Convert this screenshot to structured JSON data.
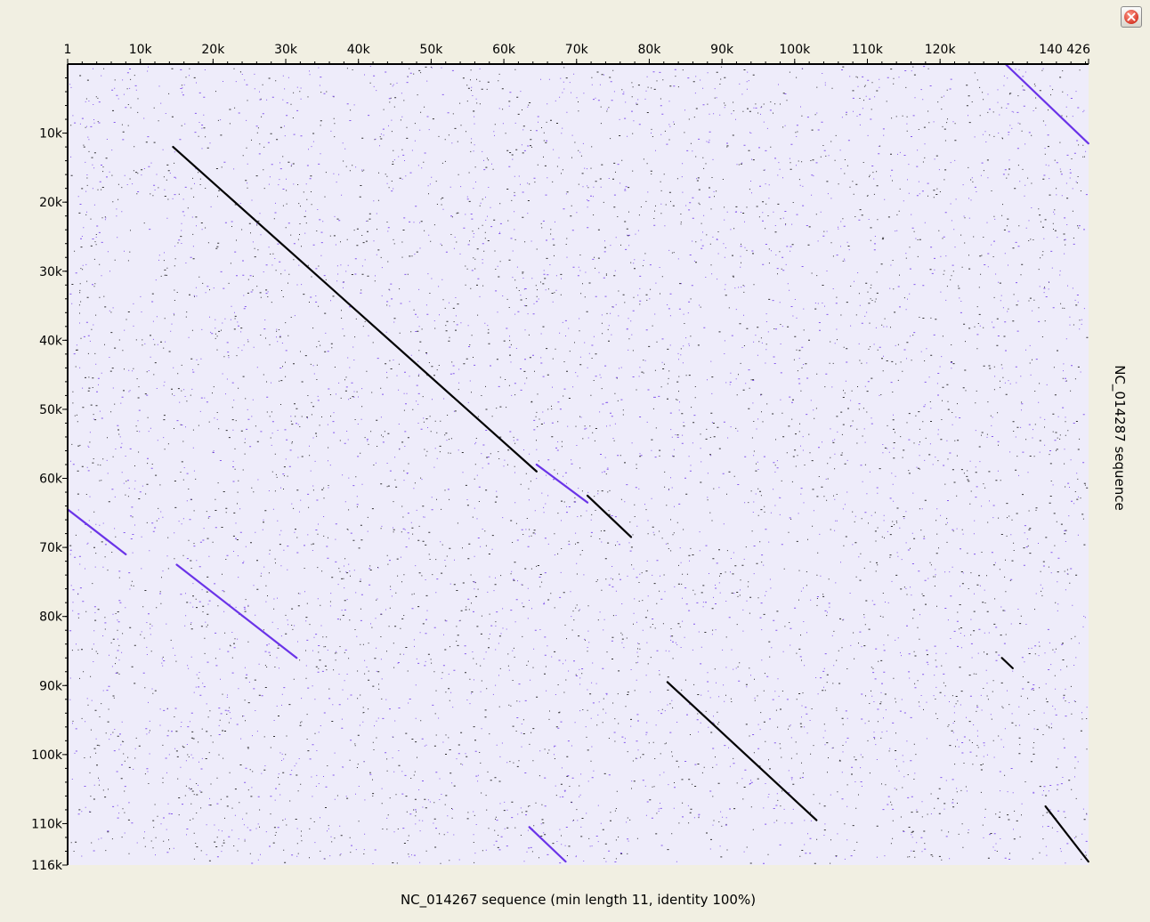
{
  "window": {
    "close_icon": "close-icon"
  },
  "colors": {
    "background": "#f1efe2",
    "plot_background": "#eeecfa",
    "forward_match": "#000000",
    "reverse_match": "#6a33e8"
  },
  "chart_data": {
    "type": "scatter",
    "xlabel": "NC_014267 sequence (min length 11, identity 100%)",
    "ylabel": "NC_014287 sequence",
    "x_axis_position": "top",
    "y_axis_position": "left",
    "xlim": [
      1,
      140426
    ],
    "ylim": [
      1,
      116000
    ],
    "y_inverted": true,
    "grid": false,
    "x_ticks": [
      {
        "value": 1,
        "label": "1"
      },
      {
        "value": 10000,
        "label": "10k"
      },
      {
        "value": 20000,
        "label": "20k"
      },
      {
        "value": 30000,
        "label": "30k"
      },
      {
        "value": 40000,
        "label": "40k"
      },
      {
        "value": 50000,
        "label": "50k"
      },
      {
        "value": 60000,
        "label": "60k"
      },
      {
        "value": 70000,
        "label": "70k"
      },
      {
        "value": 80000,
        "label": "80k"
      },
      {
        "value": 90000,
        "label": "90k"
      },
      {
        "value": 100000,
        "label": "100k"
      },
      {
        "value": 110000,
        "label": "110k"
      },
      {
        "value": 120000,
        "label": "120k"
      },
      {
        "value": 140426,
        "label": "140 426"
      }
    ],
    "y_ticks": [
      {
        "value": 10000,
        "label": "10k"
      },
      {
        "value": 20000,
        "label": "20k"
      },
      {
        "value": 30000,
        "label": "30k"
      },
      {
        "value": 40000,
        "label": "40k"
      },
      {
        "value": 50000,
        "label": "50k"
      },
      {
        "value": 60000,
        "label": "60k"
      },
      {
        "value": 70000,
        "label": "70k"
      },
      {
        "value": 80000,
        "label": "80k"
      },
      {
        "value": 90000,
        "label": "90k"
      },
      {
        "value": 100000,
        "label": "100k"
      },
      {
        "value": 110000,
        "label": "110k"
      },
      {
        "value": 116000,
        "label": "116k"
      }
    ],
    "series": [
      {
        "kind": "forward",
        "color": "#000000",
        "segments": [
          {
            "x": [
              14500,
              64500
            ],
            "y": [
              12000,
              59000
            ]
          },
          {
            "x": [
              71500,
              77500
            ],
            "y": [
              62500,
              68500
            ]
          },
          {
            "x": [
              82500,
              103000
            ],
            "y": [
              89500,
              109500
            ]
          },
          {
            "x": [
              134500,
              140400
            ],
            "y": [
              107500,
              115500
            ]
          },
          {
            "x": [
              128500,
              130000
            ],
            "y": [
              86000,
              87500
            ]
          }
        ]
      },
      {
        "kind": "reverse",
        "color": "#6a33e8",
        "segments": [
          {
            "x": [
              129000,
              140400
            ],
            "y": [
              1,
              11500
            ]
          },
          {
            "x": [
              1,
              8000
            ],
            "y": [
              64500,
              71000
            ]
          },
          {
            "x": [
              15000,
              31500
            ],
            "y": [
              72500,
              86000
            ]
          },
          {
            "x": [
              64500,
              71500
            ],
            "y": [
              58000,
              63500
            ]
          },
          {
            "x": [
              63500,
              68500
            ],
            "y": [
              110500,
              115500
            ]
          }
        ]
      }
    ],
    "background_noise": true
  }
}
